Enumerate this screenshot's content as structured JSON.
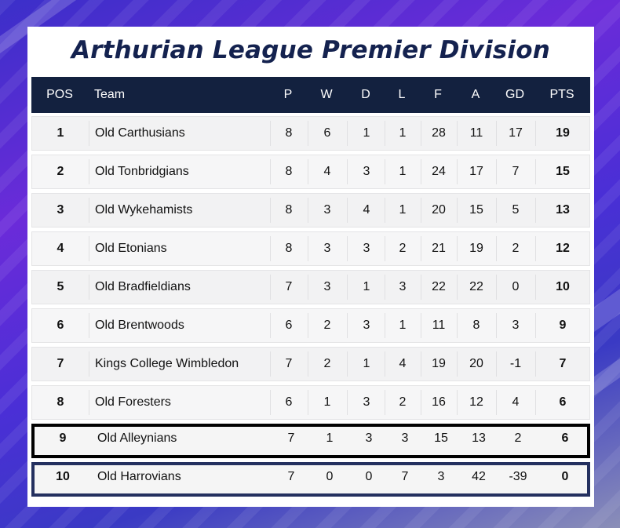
{
  "title": "Arthurian League Premier Division",
  "colors": {
    "header_bg": "#13213f",
    "title": "#14224f",
    "highlight_black": "#000000",
    "highlight_navy": "#24305f"
  },
  "columns": [
    "POS",
    "Team",
    "P",
    "W",
    "D",
    "L",
    "F",
    "A",
    "GD",
    "PTS"
  ],
  "rows": [
    {
      "pos": "1",
      "team": "Old Carthusians",
      "p": "8",
      "w": "6",
      "d": "1",
      "l": "1",
      "f": "28",
      "a": "11",
      "gd": "17",
      "pts": "19"
    },
    {
      "pos": "2",
      "team": "Old Tonbridgians",
      "p": "8",
      "w": "4",
      "d": "3",
      "l": "1",
      "f": "24",
      "a": "17",
      "gd": "7",
      "pts": "15"
    },
    {
      "pos": "3",
      "team": "Old Wykehamists",
      "p": "8",
      "w": "3",
      "d": "4",
      "l": "1",
      "f": "20",
      "a": "15",
      "gd": "5",
      "pts": "13"
    },
    {
      "pos": "4",
      "team": "Old Etonians",
      "p": "8",
      "w": "3",
      "d": "3",
      "l": "2",
      "f": "21",
      "a": "19",
      "gd": "2",
      "pts": "12"
    },
    {
      "pos": "5",
      "team": "Old Bradfieldians",
      "p": "7",
      "w": "3",
      "d": "1",
      "l": "3",
      "f": "22",
      "a": "22",
      "gd": "0",
      "pts": "10"
    },
    {
      "pos": "6",
      "team": "Old Brentwoods",
      "p": "6",
      "w": "2",
      "d": "3",
      "l": "1",
      "f": "11",
      "a": "8",
      "gd": "3",
      "pts": "9"
    },
    {
      "pos": "7",
      "team": "Kings College Wimbledon",
      "p": "7",
      "w": "2",
      "d": "1",
      "l": "4",
      "f": "19",
      "a": "20",
      "gd": "-1",
      "pts": "7"
    },
    {
      "pos": "8",
      "team": "Old Foresters",
      "p": "6",
      "w": "1",
      "d": "3",
      "l": "2",
      "f": "16",
      "a": "12",
      "gd": "4",
      "pts": "6"
    },
    {
      "pos": "9",
      "team": "Old Alleynians",
      "p": "7",
      "w": "1",
      "d": "3",
      "l": "3",
      "f": "15",
      "a": "13",
      "gd": "2",
      "pts": "6"
    },
    {
      "pos": "10",
      "team": "Old Harrovians",
      "p": "7",
      "w": "0",
      "d": "0",
      "l": "7",
      "f": "3",
      "a": "42",
      "gd": "-39",
      "pts": "0"
    }
  ]
}
